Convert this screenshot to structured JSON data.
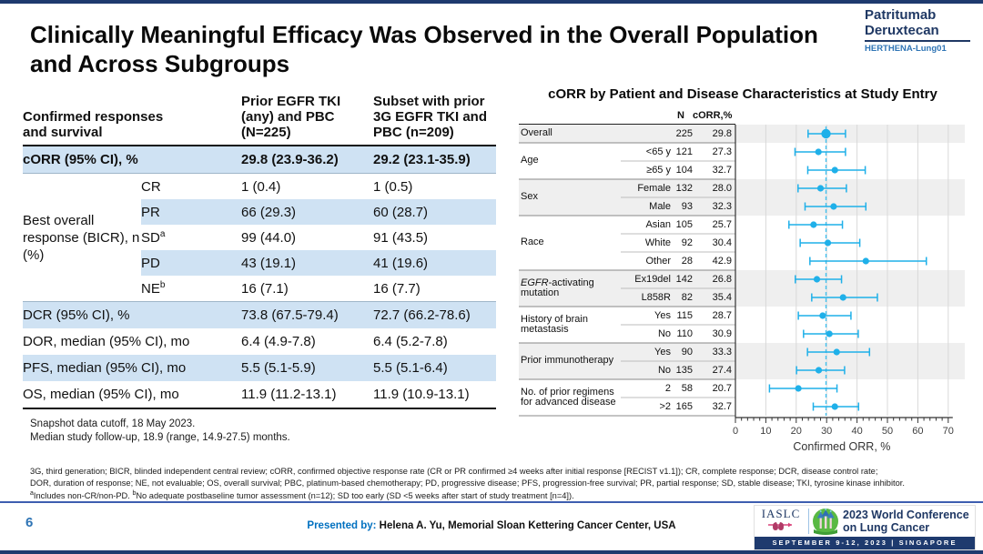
{
  "slide": {
    "title_line1": "Clinically Meaningful Efficacy Was Observed in the Overall Population",
    "title_line2": "and Across Subgroups"
  },
  "brand": {
    "line1": "Patritumab",
    "line2": "Deruxtecan",
    "trial": "HERTHENA-Lung01"
  },
  "results_table": {
    "row_header": "Confirmed responses and survival",
    "col1_header": "Prior EGFR TKI (any) and PBC (N=225)",
    "col2_header": "Subset with prior 3G EGFR TKI and PBC (n=209)",
    "corr_row": {
      "label": "cORR (95% CI), %",
      "v1": "29.8 (23.9-36.2)",
      "v2": "29.2 (23.1-35.9)"
    },
    "bor_label": "Best overall response (BICR), n (%)",
    "bor_rows": [
      {
        "label": "CR",
        "sup": "",
        "v1": "1 (0.4)",
        "v2": "1 (0.5)",
        "highlight": false
      },
      {
        "label": "PR",
        "sup": "",
        "v1": "66 (29.3)",
        "v2": "60 (28.7)",
        "highlight": true
      },
      {
        "label": "SD",
        "sup": "a",
        "v1": "99 (44.0)",
        "v2": "91 (43.5)",
        "highlight": false
      },
      {
        "label": "PD",
        "sup": "",
        "v1": "43 (19.1)",
        "v2": "41 (19.6)",
        "highlight": true
      },
      {
        "label": "NE",
        "sup": "b",
        "v1": "16 (7.1)",
        "v2": "16 (7.7)",
        "highlight": false
      }
    ],
    "survival_rows": [
      {
        "label": "DCR (95% CI), %",
        "v1": "73.8 (67.5-79.4)",
        "v2": "72.7 (66.2-78.6)",
        "highlight": true
      },
      {
        "label": "DOR, median (95% CI), mo",
        "v1": "6.4 (4.9-7.8)",
        "v2": "6.4 (5.2-7.8)",
        "highlight": false
      },
      {
        "label": "PFS, median (95% CI), mo",
        "v1": "5.5 (5.1-5.9)",
        "v2": "5.5 (5.1-6.4)",
        "highlight": true
      },
      {
        "label": "OS, median (95% CI), mo",
        "v1": "11.9 (11.2-13.1)",
        "v2": "11.9 (10.9-13.1)",
        "highlight": false
      }
    ],
    "notes": [
      "Snapshot data cutoff, 18 May 2023.",
      "Median study follow-up, 18.9 (range, 14.9-27.5) months."
    ]
  },
  "chart_data": {
    "type": "scatter",
    "subtype": "forest",
    "title": "cORR by Patient and Disease Characteristics at Study Entry",
    "xlabel": "Confirmed ORR, %",
    "xlim": [
      0,
      70
    ],
    "xticks": [
      0,
      10,
      20,
      30,
      40,
      50,
      60,
      70
    ],
    "minor_tick_step": 2,
    "reference_line": 29.8,
    "columns": [
      "N",
      "cORR,%"
    ],
    "marker_color": "#1FB0E9",
    "groups": [
      {
        "name": "Overall",
        "shaded": true,
        "rows": [
          {
            "label": "",
            "n": 225,
            "corr": 29.8,
            "ci": [
              23.9,
              36.2
            ],
            "overall": true
          }
        ]
      },
      {
        "name": "Age",
        "shaded": false,
        "rows": [
          {
            "label": "<65 y",
            "n": 121,
            "corr": 27.3,
            "ci": [
              19.6,
              36.2
            ]
          },
          {
            "label": "≥65 y",
            "n": 104,
            "corr": 32.7,
            "ci": [
              23.8,
              42.7
            ]
          }
        ]
      },
      {
        "name": "Sex",
        "shaded": true,
        "rows": [
          {
            "label": "Female",
            "n": 132,
            "corr": 28.0,
            "ci": [
              20.6,
              36.5
            ]
          },
          {
            "label": "Male",
            "n": 93,
            "corr": 32.3,
            "ci": [
              22.9,
              42.9
            ]
          }
        ]
      },
      {
        "name": "Race",
        "shaded": false,
        "rows": [
          {
            "label": "Asian",
            "n": 105,
            "corr": 25.7,
            "ci": [
              17.6,
              35.2
            ]
          },
          {
            "label": "White",
            "n": 92,
            "corr": 30.4,
            "ci": [
              21.3,
              40.9
            ]
          },
          {
            "label": "Other",
            "n": 28,
            "corr": 42.9,
            "ci": [
              24.5,
              62.8
            ]
          }
        ]
      },
      {
        "name_italic": "EGFR",
        "name": "-activating mutation",
        "shaded": true,
        "rows": [
          {
            "label": "Ex19del",
            "n": 142,
            "corr": 26.8,
            "ci": [
              19.7,
              34.9
            ]
          },
          {
            "label": "L858R",
            "n": 82,
            "corr": 35.4,
            "ci": [
              25.1,
              46.7
            ]
          }
        ]
      },
      {
        "name": "History of brain metastasis",
        "shaded": false,
        "rows": [
          {
            "label": "Yes",
            "n": 115,
            "corr": 28.7,
            "ci": [
              20.7,
              38.0
            ]
          },
          {
            "label": "No",
            "n": 110,
            "corr": 30.9,
            "ci": [
              22.4,
              40.4
            ]
          }
        ]
      },
      {
        "name": "Prior immunotherapy",
        "shaded": true,
        "rows": [
          {
            "label": "Yes",
            "n": 90,
            "corr": 33.3,
            "ci": [
              23.7,
              44.1
            ]
          },
          {
            "label": "No",
            "n": 135,
            "corr": 27.4,
            "ci": [
              20.1,
              35.9
            ]
          }
        ]
      },
      {
        "name": "No. of prior regimens for advanced disease",
        "shaded": false,
        "rows": [
          {
            "label": "2",
            "n": 58,
            "corr": 20.7,
            "ci": [
              11.2,
              33.4
            ]
          },
          {
            "label": ">2",
            "n": 165,
            "corr": 32.7,
            "ci": [
              25.6,
              40.5
            ]
          }
        ]
      }
    ]
  },
  "footnotes": {
    "l1": "3G, third generation; BICR, blinded independent central review; cORR, confirmed objective response rate (CR or PR confirmed ≥4 weeks after initial response [RECIST v1.1]); CR, complete response; DCR, disease control rate;",
    "l2": "DOR, duration of response; NE, not evaluable; OS, overall survival; PBC, platinum-based chemotherapy; PD, progressive disease; PFS, progression-free survival; PR, partial response; SD, stable disease; TKI, tyrosine kinase inhibitor.",
    "l3a_sup": "a",
    "l3a": "Includes non-CR/non-PD. ",
    "l3b_sup": "b",
    "l3b": "No adequate postbaseline tumor assessment (n=12); SD too early (SD <5 weeks after start of study treatment [n=4])."
  },
  "footer": {
    "page_number": "6",
    "presented_by_label": "Presented by: ",
    "presenter": "Helena A. Yu, Memorial Sloan Kettering Cancer Center, USA",
    "iaslc": "IASLC",
    "conf_line1": "2023 World Conference",
    "conf_line2": "on Lung Cancer",
    "conf_banner": "SEPTEMBER 9-12, 2023 | SINGAPORE"
  },
  "colors": {
    "navy": "#1F3864",
    "accent_blue": "#2E74B5",
    "presented_blue": "#0070C0",
    "table_highlight": "#CFE2F3",
    "marker_cyan": "#1FB0E9",
    "band_gray": "#EFEFEF"
  }
}
